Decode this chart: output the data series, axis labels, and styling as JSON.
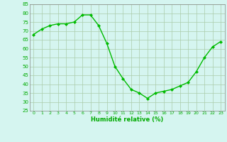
{
  "x": [
    0,
    1,
    2,
    3,
    4,
    5,
    6,
    7,
    8,
    9,
    10,
    11,
    12,
    13,
    14,
    15,
    16,
    17,
    18,
    19,
    20,
    21,
    22,
    23
  ],
  "y": [
    68,
    71,
    73,
    74,
    74,
    75,
    79,
    79,
    73,
    63,
    50,
    43,
    37,
    35,
    32,
    35,
    36,
    37,
    39,
    41,
    47,
    55,
    61,
    64
  ],
  "line_color": "#00bb00",
  "marker": "D",
  "marker_size": 2.0,
  "bg_color": "#d5f5f0",
  "grid_color": "#aaccaa",
  "xlabel": "Humidité relative (%)",
  "xlabel_color": "#00aa00",
  "tick_color": "#00aa00",
  "spine_color": "#888888",
  "ylim": [
    25,
    85
  ],
  "yticks": [
    25,
    30,
    35,
    40,
    45,
    50,
    55,
    60,
    65,
    70,
    75,
    80,
    85
  ],
  "xlim": [
    -0.5,
    23.5
  ],
  "xticks": [
    0,
    1,
    2,
    3,
    4,
    5,
    6,
    7,
    8,
    9,
    10,
    11,
    12,
    13,
    14,
    15,
    16,
    17,
    18,
    19,
    20,
    21,
    22,
    23
  ]
}
